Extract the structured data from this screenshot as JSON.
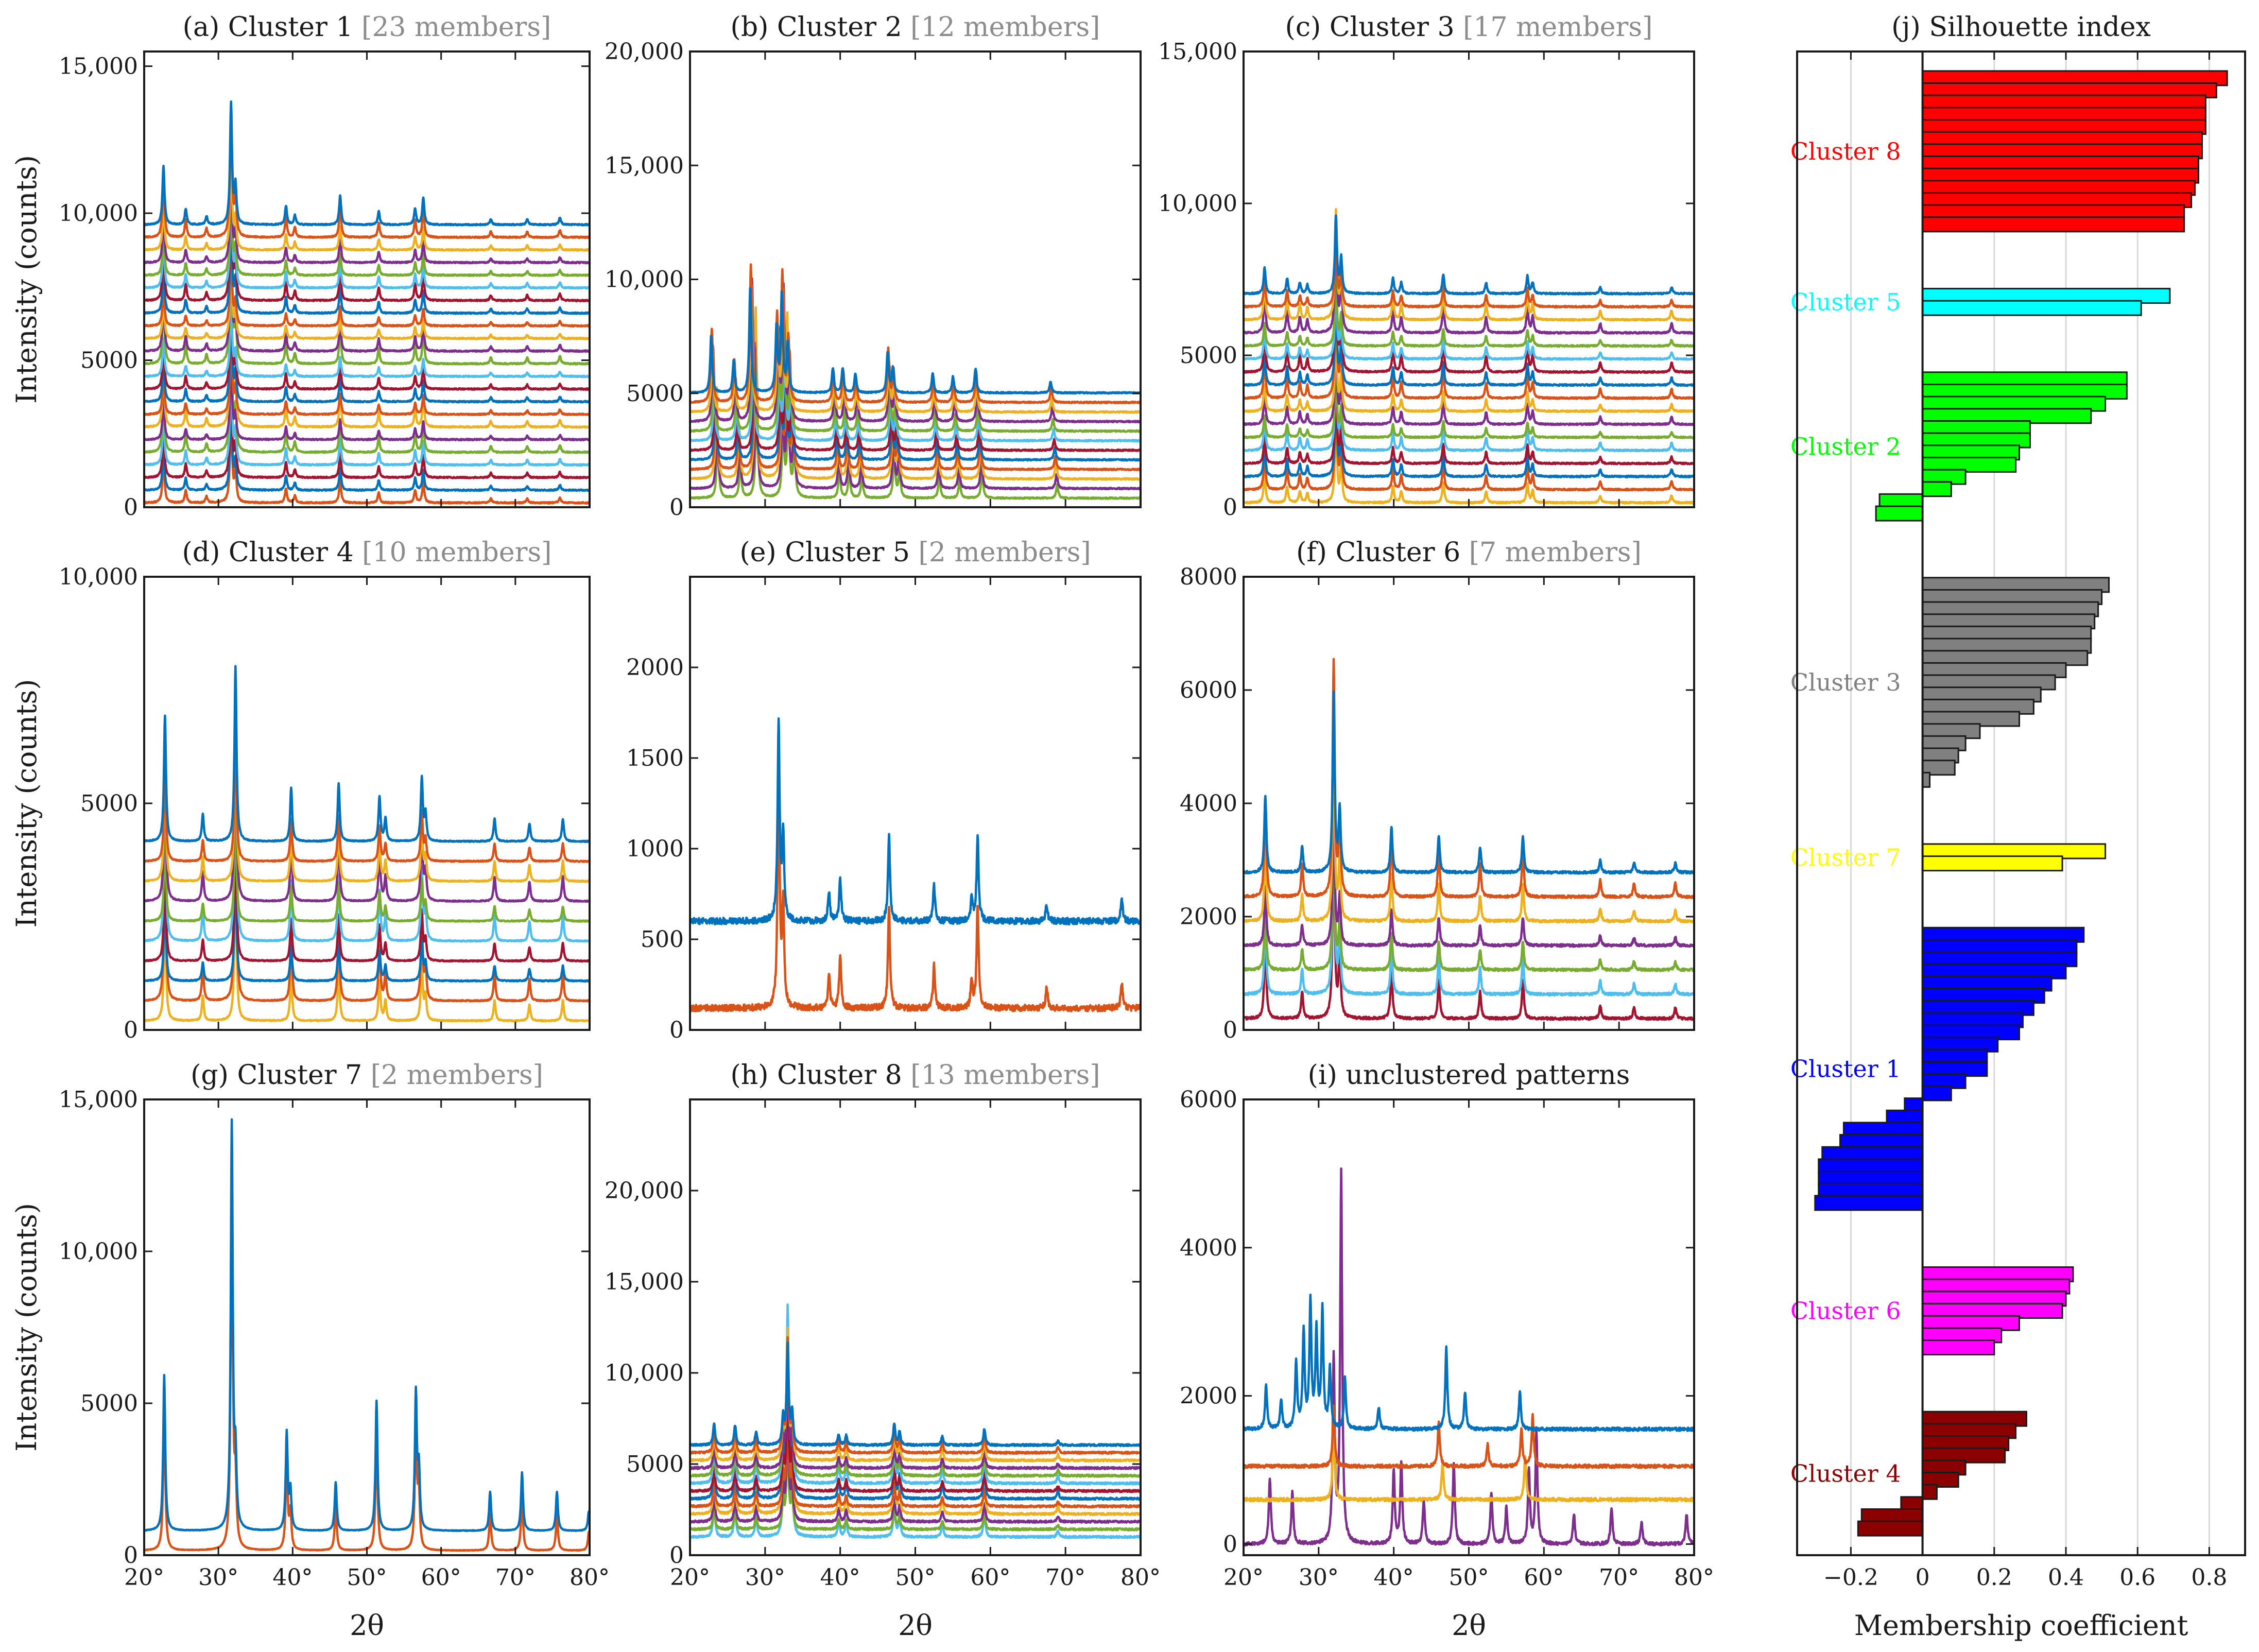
{
  "colors": {
    "palette": [
      "#0072BD",
      "#D95319",
      "#EDB120",
      "#7E2F8E",
      "#77AC30",
      "#4DBEEE",
      "#A2142F"
    ],
    "frame": "#1a1a1a",
    "grey_text": "#8c8c8c",
    "grid": "#d9d9d9"
  },
  "chart_data": [
    {
      "id": "a",
      "type": "line",
      "title_main": "(a) Cluster 1",
      "title_members": "[23 members]",
      "ylabel": "Intensity (counts)",
      "xlabel": "",
      "xlim": [
        20,
        80
      ],
      "ylim": [
        0,
        15500
      ],
      "yticks": [
        0,
        5000,
        10000,
        15000
      ],
      "ytick_labels": [
        "0",
        "5000",
        "10,000",
        "15,000"
      ],
      "xticks": [
        20,
        30,
        40,
        50,
        60,
        70,
        80
      ],
      "xtick_labels": [],
      "series_count": 23,
      "offset_step": 430,
      "base": 150,
      "noise": 45,
      "peak_scale": 0.9,
      "shift_step": 0,
      "peaks": [
        [
          22.6,
          2200
        ],
        [
          25.6,
          600
        ],
        [
          28.4,
          300
        ],
        [
          31.7,
          4500
        ],
        [
          32.3,
          1400
        ],
        [
          39.1,
          700
        ],
        [
          40.3,
          350
        ],
        [
          46.4,
          1100
        ],
        [
          51.6,
          500
        ],
        [
          56.5,
          600
        ],
        [
          57.6,
          1000
        ],
        [
          66.7,
          200
        ],
        [
          71.6,
          200
        ],
        [
          76.0,
          250
        ]
      ]
    },
    {
      "id": "b",
      "type": "line",
      "title_main": "(b) Cluster 2",
      "title_members": "[12 members]",
      "ylabel": "",
      "xlabel": "",
      "xlim": [
        20,
        80
      ],
      "ylim": [
        0,
        20000
      ],
      "yticks": [
        0,
        5000,
        10000,
        15000,
        20000
      ],
      "ytick_labels": [
        "0",
        "5000",
        "10,000",
        "15,000",
        "20,000"
      ],
      "xticks": [
        20,
        30,
        40,
        50,
        60,
        70,
        80
      ],
      "xtick_labels": [],
      "series_count": 12,
      "offset_step": 420,
      "base": 400,
      "noise": 60,
      "peak_scale": 1.0,
      "shift_step": 0.08,
      "peaks": [
        [
          23.3,
          3500
        ],
        [
          26.3,
          2000
        ],
        [
          28.5,
          6500
        ],
        [
          32.0,
          4000
        ],
        [
          32.7,
          6000
        ],
        [
          33.5,
          3000
        ],
        [
          39.5,
          1500
        ],
        [
          40.8,
          1500
        ],
        [
          42.5,
          1200
        ],
        [
          46.8,
          2500
        ],
        [
          47.5,
          1500
        ],
        [
          52.8,
          1200
        ],
        [
          55.5,
          1000
        ],
        [
          58.5,
          1500
        ],
        [
          68.5,
          700
        ]
      ]
    },
    {
      "id": "c",
      "type": "line",
      "title_main": "(c) Cluster 3",
      "title_members": "[17 members]",
      "ylabel": "",
      "xlabel": "",
      "xlim": [
        20,
        80
      ],
      "ylim": [
        0,
        15000
      ],
      "yticks": [
        0,
        5000,
        10000,
        15000
      ],
      "ytick_labels": [
        "0",
        "5000",
        "10,000",
        "15,000"
      ],
      "xticks": [
        20,
        30,
        40,
        50,
        60,
        70,
        80
      ],
      "xtick_labels": [],
      "series_count": 17,
      "offset_step": 430,
      "base": 150,
      "noise": 50,
      "peak_scale": 0.9,
      "shift_step": 0,
      "peaks": [
        [
          22.8,
          1200
        ],
        [
          25.8,
          700
        ],
        [
          27.5,
          500
        ],
        [
          28.5,
          400
        ],
        [
          32.3,
          3500
        ],
        [
          33.0,
          1600
        ],
        [
          39.9,
          700
        ],
        [
          41.0,
          500
        ],
        [
          46.6,
          900
        ],
        [
          52.3,
          500
        ],
        [
          57.8,
          800
        ],
        [
          58.5,
          500
        ],
        [
          67.5,
          300
        ],
        [
          77.0,
          300
        ]
      ]
    },
    {
      "id": "d",
      "type": "line",
      "title_main": "(d) Cluster 4",
      "title_members": "[10 members]",
      "ylabel": "Intensity (counts)",
      "xlabel": "",
      "xlim": [
        20,
        80
      ],
      "ylim": [
        0,
        10000
      ],
      "yticks": [
        0,
        5000,
        10000
      ],
      "ytick_labels": [
        "0",
        "5000",
        "10,000"
      ],
      "xticks": [
        20,
        30,
        40,
        50,
        60,
        70,
        80
      ],
      "xtick_labels": [],
      "series_count": 10,
      "offset_step": 440,
      "base": 200,
      "noise": 25,
      "peak_scale": 1.0,
      "shift_step": 0,
      "peaks": [
        [
          22.8,
          2800
        ],
        [
          27.9,
          600
        ],
        [
          32.3,
          3900
        ],
        [
          39.8,
          1200
        ],
        [
          46.2,
          1300
        ],
        [
          51.7,
          1000
        ],
        [
          52.5,
          500
        ],
        [
          57.4,
          1400
        ],
        [
          57.9,
          600
        ],
        [
          67.2,
          500
        ],
        [
          71.9,
          400
        ],
        [
          76.4,
          500
        ]
      ]
    },
    {
      "id": "e",
      "type": "line",
      "title_main": "(e) Cluster 5",
      "title_members": "[2 members]",
      "ylabel": "",
      "xlabel": "",
      "xlim": [
        20,
        80
      ],
      "ylim": [
        0,
        2500
      ],
      "yticks": [
        0,
        500,
        1000,
        1500,
        2000
      ],
      "ytick_labels": [
        "0",
        "500",
        "1000",
        "1500",
        "2000"
      ],
      "xticks": [
        20,
        30,
        40,
        50,
        60,
        70,
        80
      ],
      "xtick_labels": [],
      "series_count": 2,
      "offset_step": 480,
      "base": 120,
      "noise": 35,
      "peak_scale": 1.0,
      "shift_step": 0,
      "peaks": [
        [
          31.8,
          1400
        ],
        [
          32.4,
          600
        ],
        [
          38.5,
          200
        ],
        [
          40.0,
          300
        ],
        [
          46.5,
          600
        ],
        [
          52.5,
          250
        ],
        [
          57.5,
          150
        ],
        [
          58.3,
          600
        ],
        [
          67.5,
          120
        ],
        [
          77.5,
          150
        ]
      ]
    },
    {
      "id": "f",
      "type": "line",
      "title_main": "(f) Cluster 6",
      "title_members": "[7 members]",
      "ylabel": "",
      "xlabel": "",
      "xlim": [
        20,
        80
      ],
      "ylim": [
        0,
        8000
      ],
      "yticks": [
        0,
        2000,
        4000,
        6000,
        8000
      ],
      "ytick_labels": [
        "0",
        "2000",
        "4000",
        "6000",
        "8000"
      ],
      "xticks": [
        20,
        30,
        40,
        50,
        60,
        70,
        80
      ],
      "xtick_labels": [],
      "series_count": 7,
      "offset_step": 430,
      "base": 200,
      "noise": 45,
      "peak_scale": 1.0,
      "shift_step": 0,
      "peaks": [
        [
          22.9,
          1500
        ],
        [
          27.8,
          500
        ],
        [
          32.0,
          3500
        ],
        [
          32.8,
          1200
        ],
        [
          39.7,
          900
        ],
        [
          46.0,
          700
        ],
        [
          51.5,
          500
        ],
        [
          57.2,
          700
        ],
        [
          67.5,
          250
        ],
        [
          72.0,
          200
        ],
        [
          77.5,
          200
        ]
      ]
    },
    {
      "id": "g",
      "type": "line",
      "title_main": "(g) Cluster 7",
      "title_members": "[2 members]",
      "ylabel": "Intensity (counts)",
      "xlabel": "",
      "xlim": [
        20,
        80
      ],
      "ylim": [
        0,
        15000
      ],
      "yticks": [
        0,
        5000,
        10000,
        15000
      ],
      "ytick_labels": [
        "0",
        "5000",
        "10,000",
        "15,000"
      ],
      "xticks": [
        20,
        30,
        40,
        50,
        60,
        70,
        80
      ],
      "xtick_labels": [
        "20°",
        "30°",
        "40°",
        "50°",
        "60°",
        "70°",
        "80°"
      ],
      "series_count": 2,
      "offset_step": 650,
      "base": 150,
      "noise": 20,
      "peak_scale": 1.0,
      "shift_step": 0,
      "peaks": [
        [
          22.7,
          4800
        ],
        [
          31.8,
          12500
        ],
        [
          32.3,
          2000
        ],
        [
          39.2,
          3000
        ],
        [
          39.7,
          1200
        ],
        [
          45.8,
          1500
        ],
        [
          51.3,
          4000
        ],
        [
          56.6,
          4200
        ],
        [
          57.0,
          1800
        ],
        [
          66.6,
          1200
        ],
        [
          70.9,
          1800
        ],
        [
          75.6,
          1200
        ],
        [
          79.9,
          600
        ]
      ]
    },
    {
      "id": "h",
      "type": "line",
      "title_main": "(h) Cluster 8",
      "title_members": "[13 members]",
      "ylabel": "",
      "xlabel": "",
      "xlim": [
        20,
        80
      ],
      "ylim": [
        0,
        25000
      ],
      "yticks": [
        0,
        5000,
        10000,
        15000,
        20000
      ],
      "ytick_labels": [
        "0",
        "5000",
        "10,000",
        "15,000",
        "20,000"
      ],
      "xticks": [
        20,
        30,
        40,
        50,
        60,
        70,
        80
      ],
      "xtick_labels": [
        "20°",
        "30°",
        "40°",
        "50°",
        "60°",
        "70°",
        "80°"
      ],
      "series_count": 13,
      "offset_step": 420,
      "base": 1000,
      "noise": 110,
      "peak_scale": 0.9,
      "shift_step": 0,
      "peaks": [
        [
          23.2,
          2000
        ],
        [
          26.0,
          1800
        ],
        [
          28.8,
          1200
        ],
        [
          32.4,
          2500
        ],
        [
          33.0,
          9000
        ],
        [
          33.6,
          3000
        ],
        [
          39.8,
          1000
        ],
        [
          40.8,
          900
        ],
        [
          47.2,
          1900
        ],
        [
          47.9,
          1200
        ],
        [
          53.6,
          800
        ],
        [
          59.2,
          1500
        ],
        [
          69.0,
          400
        ]
      ]
    },
    {
      "id": "i",
      "type": "line",
      "title_main": "(i) unclustered patterns",
      "title_members": "",
      "ylabel": "",
      "xlabel": "",
      "xlim": [
        20,
        80
      ],
      "ylim": [
        -150,
        6000
      ],
      "yticks": [
        0,
        2000,
        4000,
        6000
      ],
      "ytick_labels": [
        "0",
        "2000",
        "4000",
        "6000"
      ],
      "xticks": [
        20,
        30,
        40,
        50,
        60,
        70,
        80
      ],
      "xtick_labels": [
        "20°",
        "30°",
        "40°",
        "50°",
        "60°",
        "70°",
        "80°"
      ],
      "series_count": 4,
      "base": 0,
      "noise": 45,
      "peak_scale": 1.0,
      "shift_step": 0,
      "series_offsets": [
        1550,
        1050,
        600,
        0
      ],
      "series_peaks": [
        [
          [
            23.0,
            600
          ],
          [
            25.0,
            400
          ],
          [
            27.0,
            900
          ],
          [
            28.0,
            1300
          ],
          [
            28.9,
            1700
          ],
          [
            29.7,
            1300
          ],
          [
            30.5,
            1600
          ],
          [
            31.5,
            800
          ],
          [
            33.5,
            700
          ],
          [
            38.0,
            300
          ],
          [
            47.0,
            1100
          ],
          [
            49.5,
            500
          ],
          [
            56.8,
            500
          ]
        ],
        [
          [
            32.0,
            800
          ],
          [
            46.0,
            600
          ],
          [
            52.5,
            300
          ],
          [
            57.0,
            500
          ],
          [
            58.5,
            700
          ]
        ],
        [
          [
            32.0,
            1000
          ],
          [
            46.5,
            500
          ],
          [
            57.5,
            600
          ]
        ],
        [
          [
            23.5,
            900
          ],
          [
            26.5,
            700
          ],
          [
            32.0,
            2500
          ],
          [
            33.0,
            5000
          ],
          [
            40.0,
            1000
          ],
          [
            41.0,
            1100
          ],
          [
            44.0,
            600
          ],
          [
            48.0,
            1100
          ],
          [
            53.0,
            700
          ],
          [
            55.0,
            500
          ],
          [
            58.0,
            1000
          ],
          [
            59.0,
            1500
          ],
          [
            64.0,
            400
          ],
          [
            69.0,
            500
          ],
          [
            73.0,
            300
          ],
          [
            79.0,
            400
          ]
        ]
      ]
    },
    {
      "id": "j",
      "type": "bar",
      "orientation": "horizontal",
      "title": "(j) Silhouette index",
      "xlabel": "Membership coefficient",
      "xlim": [
        -0.35,
        0.9
      ],
      "xticks": [
        -0.2,
        0,
        0.2,
        0.4,
        0.6,
        0.8
      ],
      "xtick_labels": [
        "−0.2",
        "0",
        "0.2",
        "0.4",
        "0.6",
        "0.8"
      ],
      "groups": [
        {
          "label": "Cluster 8",
          "color": "#FF0000",
          "values": [
            0.85,
            0.82,
            0.79,
            0.79,
            0.79,
            0.78,
            0.78,
            0.77,
            0.77,
            0.76,
            0.75,
            0.73,
            0.73
          ]
        },
        {
          "label": "Cluster 5",
          "color": "#00FFFF",
          "values": [
            0.69,
            0.61
          ]
        },
        {
          "label": "Cluster 2",
          "color": "#00FF00",
          "values": [
            0.57,
            0.57,
            0.51,
            0.47,
            0.3,
            0.3,
            0.27,
            0.26,
            0.12,
            0.08,
            -0.12,
            -0.13
          ]
        },
        {
          "label": "Cluster 3",
          "color": "#808080",
          "values": [
            0.52,
            0.5,
            0.49,
            0.48,
            0.47,
            0.47,
            0.46,
            0.4,
            0.37,
            0.33,
            0.31,
            0.27,
            0.16,
            0.12,
            0.1,
            0.09,
            0.02
          ]
        },
        {
          "label": "Cluster 7",
          "color": "#FFFF00",
          "values": [
            0.51,
            0.39
          ]
        },
        {
          "label": "Cluster 1",
          "color": "#0000FF",
          "values": [
            0.45,
            0.43,
            0.43,
            0.4,
            0.36,
            0.34,
            0.31,
            0.28,
            0.27,
            0.21,
            0.18,
            0.18,
            0.12,
            0.08,
            -0.05,
            -0.1,
            -0.22,
            -0.23,
            -0.28,
            -0.29,
            -0.29,
            -0.29,
            -0.3
          ]
        },
        {
          "label": "Cluster 6",
          "color": "#FF00FF",
          "values": [
            0.42,
            0.41,
            0.4,
            0.39,
            0.27,
            0.22,
            0.2
          ]
        },
        {
          "label": "Cluster 4",
          "color": "#8B0000",
          "values": [
            0.29,
            0.26,
            0.24,
            0.23,
            0.12,
            0.1,
            0.04,
            -0.06,
            -0.17,
            -0.18
          ]
        }
      ]
    }
  ],
  "shared_labels": {
    "ylabel": "Intensity (counts)",
    "xlabel": "2θ"
  }
}
